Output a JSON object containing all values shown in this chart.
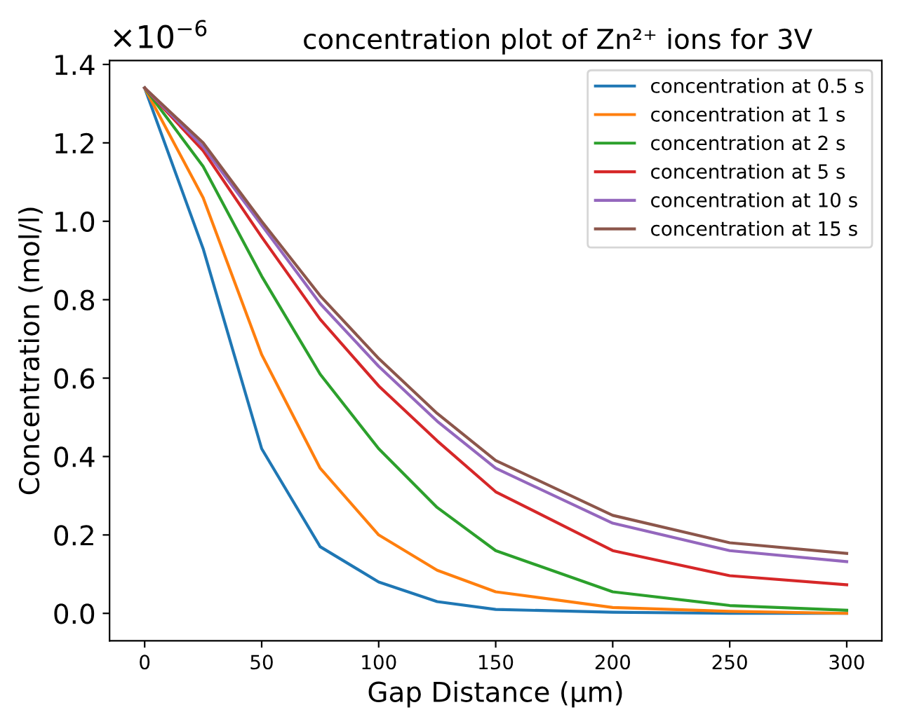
{
  "chart_data": {
    "type": "line",
    "title": "concentration plot of Zn²⁺ ions for 3V",
    "xlabel": "Gap Distance (µm)",
    "ylabel": "Concentration (mol/l)",
    "annotations": [
      "×10$^{−6}$"
    ],
    "x": [
      0,
      25,
      50,
      75,
      100,
      125,
      150,
      200,
      250,
      300
    ],
    "series": [
      {
        "name": "concentration at 0.5 s",
        "color": "#1f77b4",
        "values": [
          1.34,
          0.93,
          0.42,
          0.17,
          0.08,
          0.03,
          0.01,
          0.003,
          0,
          0
        ]
      },
      {
        "name": "concentration at 1 s",
        "color": "#ff7f0e",
        "values": [
          1.34,
          1.06,
          0.66,
          0.37,
          0.2,
          0.11,
          0.055,
          0.015,
          0.005,
          0
        ]
      },
      {
        "name": "concentration at 2 s",
        "color": "#2ca02c",
        "values": [
          1.34,
          1.14,
          0.86,
          0.61,
          0.42,
          0.27,
          0.16,
          0.055,
          0.02,
          0.008
        ]
      },
      {
        "name": "concentration at 5 s",
        "color": "#d62728",
        "values": [
          1.34,
          1.18,
          0.96,
          0.75,
          0.58,
          0.44,
          0.31,
          0.16,
          0.096,
          0.073
        ]
      },
      {
        "name": "concentration at 10 s",
        "color": "#9467bd",
        "values": [
          1.34,
          1.19,
          0.99,
          0.79,
          0.63,
          0.49,
          0.37,
          0.23,
          0.16,
          0.132
        ]
      },
      {
        "name": "concentration at 15 s",
        "color": "#8c564b",
        "values": [
          1.34,
          1.2,
          1.0,
          0.81,
          0.65,
          0.51,
          0.39,
          0.25,
          0.18,
          0.153
        ]
      }
    ],
    "xlim": [
      -15,
      315
    ],
    "ylim": [
      -0.07,
      1.41
    ],
    "xticks": [
      0,
      50,
      100,
      150,
      200,
      250,
      300
    ],
    "yticks": [
      {
        "value": 0,
        "label": "0.0"
      },
      0.2,
      0.4,
      0.6,
      0.8,
      {
        "value": 1,
        "label": "1.0"
      },
      1.2,
      1.4
    ],
    "legend": "top right",
    "grid": false,
    "marker": "none",
    "line_style": "solid"
  }
}
